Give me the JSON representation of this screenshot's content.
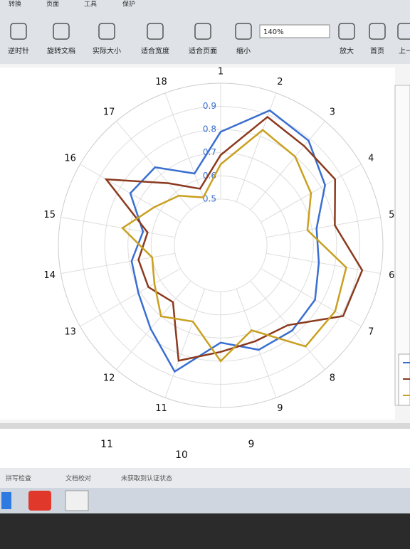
{
  "toolbar": {
    "menu": [
      "转换",
      "页面",
      "工具",
      "保护"
    ],
    "buttons": [
      "逆时针",
      "旋转文档",
      "实际大小",
      "适合宽度",
      "适合页面",
      "缩小",
      "放大",
      "首页",
      "上一"
    ],
    "zoom": "140%"
  },
  "chart_data": {
    "type": "radar",
    "categories": [
      "1",
      "2",
      "3",
      "4",
      "5",
      "6",
      "7",
      "8",
      "9",
      null,
      "11",
      "12",
      "13",
      "14",
      "15",
      "16",
      "17",
      "18"
    ],
    "ylim": [
      0.3,
      1.0
    ],
    "yticks": [
      0.5,
      0.6,
      0.7,
      0.8,
      0.9
    ],
    "grid": true,
    "series": [
      {
        "color": "#3a6fd0",
        "values": [
          0.79,
          0.92,
          0.89,
          0.82,
          0.72,
          0.73,
          0.77,
          0.78,
          0.78,
          0.72,
          0.88,
          0.77,
          0.71,
          0.69,
          0.64,
          0.75,
          0.74,
          0.63
        ]
      },
      {
        "color": "#8b3a1e",
        "values": [
          0.69,
          0.89,
          0.86,
          0.87,
          0.8,
          0.92,
          0.91,
          0.75,
          0.74,
          0.76,
          0.83,
          0.62,
          0.66,
          0.66,
          0.62,
          0.87,
          0.65,
          0.56
        ]
      },
      {
        "color": "#c9a020",
        "values": [
          0.65,
          0.83,
          0.8,
          0.75,
          0.68,
          0.85,
          0.87,
          0.87,
          0.69,
          0.8,
          0.65,
          0.7,
          0.63,
          0.6,
          0.73,
          0.63,
          0.58,
          0.52
        ]
      }
    ]
  },
  "next_page": {
    "labels": [
      "11",
      "10",
      "9"
    ]
  },
  "status_bar": {
    "items": [
      "拼写检查",
      "文档校对",
      "未获取到认证状态"
    ]
  }
}
